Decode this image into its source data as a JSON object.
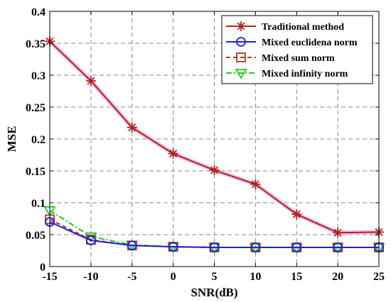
{
  "chart_data": {
    "type": "line",
    "xlabel": "SNR(dB)",
    "ylabel": "MSE",
    "x": [
      -15,
      -10,
      -5,
      0,
      5,
      10,
      15,
      20,
      25
    ],
    "xlim": [
      -15,
      25
    ],
    "ylim": [
      0,
      0.4
    ],
    "xticks": [
      "-15",
      "-10",
      "-5",
      "0",
      "5",
      "10",
      "15",
      "20",
      "25"
    ],
    "yticks": [
      "0",
      "0.05",
      "0.1",
      "0.15",
      "0.2",
      "0.25",
      "0.3",
      "0.35",
      "0.4"
    ],
    "grid": true,
    "legend_position": "top-right",
    "series": [
      {
        "name": "Traditional method",
        "color": "#b22222",
        "marker": "asterisk",
        "line_style": "solid",
        "values": [
          0.353,
          0.291,
          0.218,
          0.177,
          0.151,
          0.129,
          0.082,
          0.053,
          0.054
        ]
      },
      {
        "name": "Mixed euclidena norm",
        "color": "#1f1fd6",
        "marker": "circle",
        "line_style": "solid",
        "values": [
          0.07,
          0.041,
          0.033,
          0.031,
          0.03,
          0.03,
          0.03,
          0.03,
          0.03
        ]
      },
      {
        "name": "Mixed sum norm",
        "color": "#b03a1e",
        "marker": "square",
        "line_style": "dashed",
        "values": [
          0.074,
          0.042,
          0.033,
          0.031,
          0.03,
          0.03,
          0.03,
          0.03,
          0.03
        ]
      },
      {
        "name": "Mixed infinity norm",
        "color": "#22cc22",
        "marker": "triangle-down",
        "line_style": "dashdot",
        "values": [
          0.088,
          0.047,
          0.034,
          0.031,
          0.03,
          0.03,
          0.03,
          0.03,
          0.03
        ]
      }
    ]
  }
}
